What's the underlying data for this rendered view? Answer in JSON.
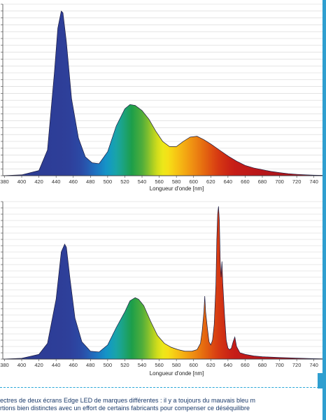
{
  "chart_data": [
    {
      "type": "area",
      "xlabel": "Longueur d'onde [nm]",
      "ylabel": "",
      "title": "",
      "xlim": [
        378,
        750
      ],
      "ylim": [
        0,
        1.0
      ],
      "x_ticks": [
        380,
        400,
        420,
        440,
        460,
        480,
        500,
        520,
        540,
        560,
        580,
        600,
        620,
        640,
        660,
        680,
        700,
        720,
        740
      ],
      "fill": "visible-spectrum gradient by wavelength",
      "x": [
        378,
        400,
        420,
        430,
        438,
        442,
        446,
        448,
        452,
        458,
        466,
        474,
        482,
        490,
        500,
        510,
        520,
        526,
        532,
        540,
        548,
        556,
        564,
        572,
        580,
        588,
        596,
        604,
        612,
        620,
        630,
        640,
        650,
        660,
        670,
        680,
        690,
        700,
        710,
        720,
        730,
        740,
        750
      ],
      "y": [
        0.0,
        0.005,
        0.03,
        0.15,
        0.6,
        0.86,
        0.96,
        0.95,
        0.78,
        0.45,
        0.22,
        0.11,
        0.075,
        0.07,
        0.14,
        0.29,
        0.39,
        0.415,
        0.41,
        0.38,
        0.33,
        0.26,
        0.2,
        0.17,
        0.17,
        0.2,
        0.225,
        0.23,
        0.21,
        0.185,
        0.15,
        0.115,
        0.085,
        0.06,
        0.045,
        0.035,
        0.025,
        0.018,
        0.012,
        0.008,
        0.005,
        0.003,
        0.002
      ]
    },
    {
      "type": "area",
      "xlabel": "Longueur d'onde [nm]",
      "ylabel": "",
      "title": "",
      "xlim": [
        378,
        750
      ],
      "ylim": [
        0,
        1.0
      ],
      "x_ticks": [
        380,
        400,
        420,
        440,
        460,
        480,
        500,
        520,
        540,
        560,
        580,
        600,
        620,
        640,
        660,
        680,
        700,
        720,
        740
      ],
      "fill": "visible-spectrum gradient by wavelength",
      "x": [
        378,
        400,
        420,
        430,
        440,
        446,
        450,
        452,
        456,
        462,
        470,
        480,
        490,
        500,
        510,
        520,
        526,
        532,
        536,
        542,
        550,
        558,
        566,
        574,
        582,
        590,
        598,
        604,
        608,
        610,
        612,
        613,
        614,
        616,
        618,
        620,
        622,
        624,
        626,
        627,
        628,
        629,
        630,
        631,
        632,
        633,
        634,
        636,
        638,
        640,
        642,
        644,
        646,
        648,
        650,
        654,
        660,
        670,
        680,
        700,
        720,
        740,
        750
      ],
      "y": [
        0.0,
        0.005,
        0.03,
        0.1,
        0.38,
        0.68,
        0.73,
        0.71,
        0.52,
        0.26,
        0.11,
        0.05,
        0.045,
        0.09,
        0.2,
        0.3,
        0.37,
        0.39,
        0.38,
        0.34,
        0.24,
        0.15,
        0.1,
        0.075,
        0.06,
        0.05,
        0.05,
        0.06,
        0.1,
        0.18,
        0.3,
        0.4,
        0.3,
        0.2,
        0.11,
        0.09,
        0.12,
        0.22,
        0.48,
        0.76,
        0.92,
        0.97,
        0.88,
        0.62,
        0.52,
        0.62,
        0.48,
        0.28,
        0.12,
        0.07,
        0.06,
        0.07,
        0.11,
        0.14,
        0.08,
        0.04,
        0.03,
        0.02,
        0.015,
        0.01,
        0.006,
        0.003,
        0.002
      ]
    }
  ],
  "caption": {
    "line1": "ectres de deux écrans Edge LED de marques différentes : il y a toujours du mauvais bleu m",
    "line2": "rtions bien distinctes avec un effort de certains fabricants pour compenser ce déséquilibre"
  }
}
